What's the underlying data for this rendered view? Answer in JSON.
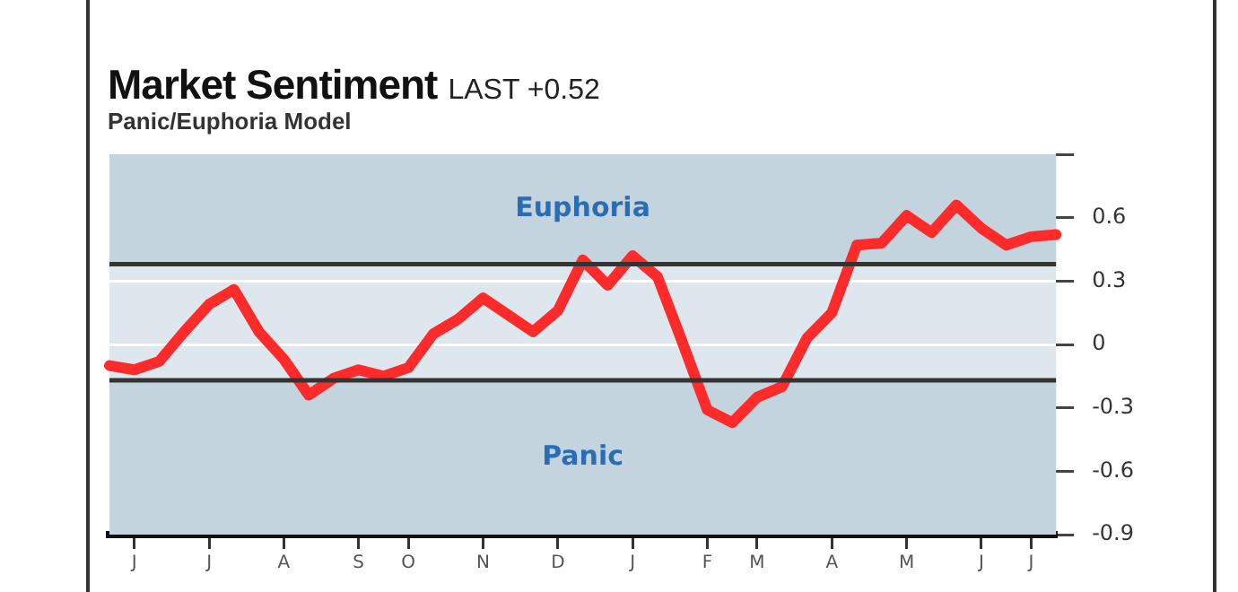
{
  "chart_data": {
    "type": "line",
    "title": "Market Sentiment",
    "subtitle": "Panic/Euphoria Model",
    "annotations": [
      "LAST +0.52"
    ],
    "categories": [
      null,
      "J",
      null,
      null,
      "J",
      null,
      null,
      "A",
      null,
      null,
      "S",
      null,
      "O",
      null,
      null,
      "N",
      null,
      null,
      "D",
      null,
      null,
      "J",
      null,
      null,
      "F",
      null,
      "M",
      null,
      null,
      "A",
      null,
      null,
      "M",
      null,
      null,
      "J",
      null,
      "J",
      null
    ],
    "ylim": [
      -0.9,
      0.9
    ],
    "yticks": [
      -0.9,
      -0.6,
      -0.3,
      0,
      0.3,
      0.6,
      {
        "value": 0.9,
        "label": null
      }
    ],
    "grid": "y",
    "legend": false,
    "bands": [
      {
        "axis": "y",
        "from": 0.38,
        "to": 0.9,
        "label": "Euphoria",
        "color": "#c3d4de"
      },
      {
        "axis": "y",
        "from": -0.9,
        "to": -0.17,
        "label": "Panic",
        "color": "#c3d4de"
      }
    ],
    "ref_lines": [
      {
        "axis": "y",
        "value": 0.38,
        "color": "#333333"
      },
      {
        "axis": "y",
        "value": -0.17,
        "color": "#333333"
      }
    ],
    "series": [
      {
        "color": "#ff2a2a",
        "values": [
          -0.1,
          -0.12,
          -0.08,
          0.06,
          0.19,
          0.26,
          0.06,
          -0.07,
          -0.24,
          -0.16,
          -0.12,
          -0.15,
          -0.11,
          0.05,
          0.12,
          0.22,
          0.14,
          0.06,
          0.16,
          0.4,
          0.28,
          0.42,
          0.32,
          0.01,
          -0.31,
          -0.37,
          -0.25,
          -0.2,
          0.03,
          0.15,
          0.47,
          0.48,
          0.61,
          0.53,
          0.66,
          0.55,
          0.47,
          0.51,
          0.52
        ]
      }
    ]
  }
}
